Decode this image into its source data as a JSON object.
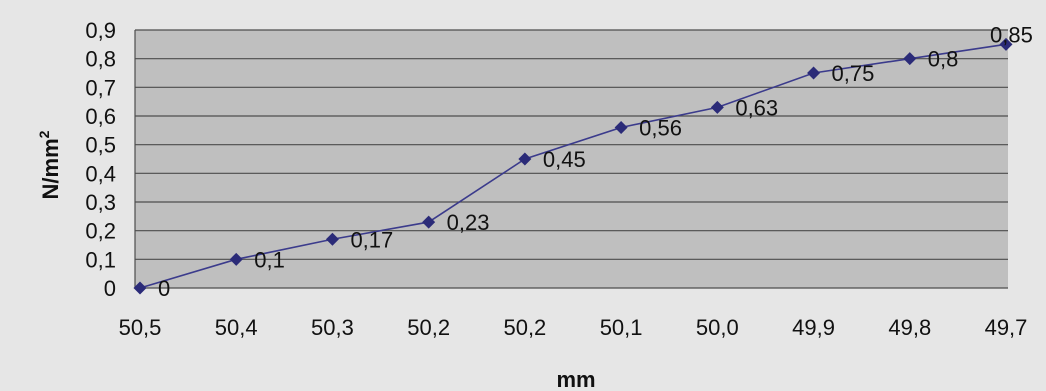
{
  "chart_data": {
    "type": "line",
    "categories": [
      "50,5",
      "50,4",
      "50,3",
      "50,2",
      "50,2",
      "50,1",
      "50,0",
      "49,9",
      "49,8",
      "49,7"
    ],
    "series": [
      {
        "values": [
          0,
          0.1,
          0.17,
          0.23,
          0.45,
          0.56,
          0.63,
          0.75,
          0.8,
          0.85
        ],
        "data_labels": [
          "0",
          "0,1",
          "0,17",
          "0,23",
          "0,45",
          "0,56",
          "0,63",
          "0,75",
          "0,8",
          "0,85"
        ]
      }
    ],
    "xlabel": "mm",
    "ylabel_base": "N/mm",
    "ylabel_superscript": "2",
    "ylim": [
      0,
      0.9
    ],
    "yticks": [
      0,
      0.1,
      0.2,
      0.3,
      0.4,
      0.5,
      0.6,
      0.7,
      0.8,
      0.9
    ],
    "ytick_labels": [
      "0",
      "0,1",
      "0,2",
      "0,3",
      "0,4",
      "0,5",
      "0,6",
      "0,7",
      "0,8",
      "0,9"
    ],
    "grid": true,
    "legend": "none",
    "colors": {
      "page_background": "#e6e6e6",
      "plot_background": "#bfbfbf",
      "gridline": "#4d4d4d",
      "line": "#3b3b8c",
      "marker": "#2b2b78"
    }
  }
}
